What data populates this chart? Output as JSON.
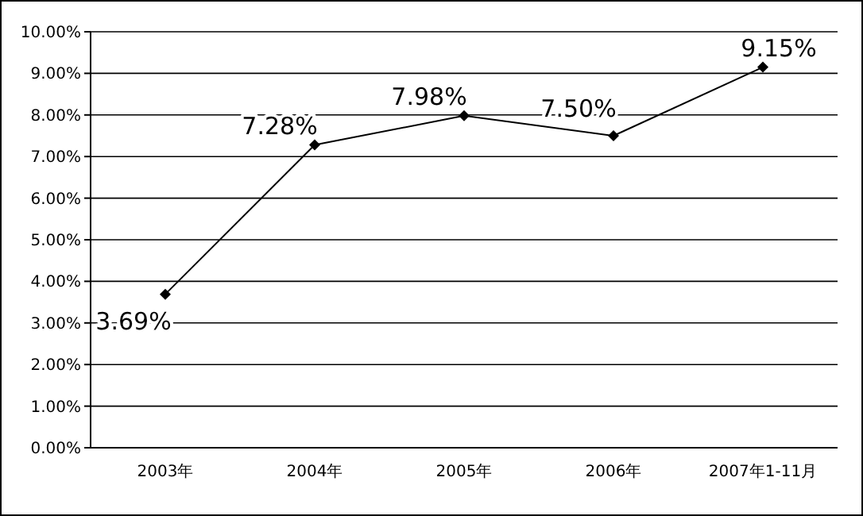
{
  "chart_data": {
    "type": "line",
    "categories": [
      "2003年",
      "2004年",
      "2005年",
      "2006年",
      "2007年1-11月"
    ],
    "series": [
      {
        "color": "#000000",
        "values": [
          3.69,
          7.28,
          7.98,
          7.5,
          9.15
        ],
        "value_labels": [
          "3.69%",
          "7.28%",
          "7.98%",
          "7.50%",
          "9.15%"
        ]
      }
    ],
    "ylim": [
      0,
      10
    ],
    "yticks": [
      {
        "value": 0,
        "label": "0.00%"
      },
      {
        "value": 1,
        "label": "1.00%"
      },
      {
        "value": 2,
        "label": "2.00%"
      },
      {
        "value": 3,
        "label": "3.00%"
      },
      {
        "value": 4,
        "label": "4.00%"
      },
      {
        "value": 5,
        "label": "5.00%"
      },
      {
        "value": 6,
        "label": "6.00%"
      },
      {
        "value": 7,
        "label": "7.00%"
      },
      {
        "value": 8,
        "label": "8.00%"
      },
      {
        "value": 9,
        "label": "9.00%"
      },
      {
        "value": 10,
        "label": "10.00%"
      }
    ],
    "grid": "y",
    "marker": "diamond",
    "line_style": "solid"
  }
}
